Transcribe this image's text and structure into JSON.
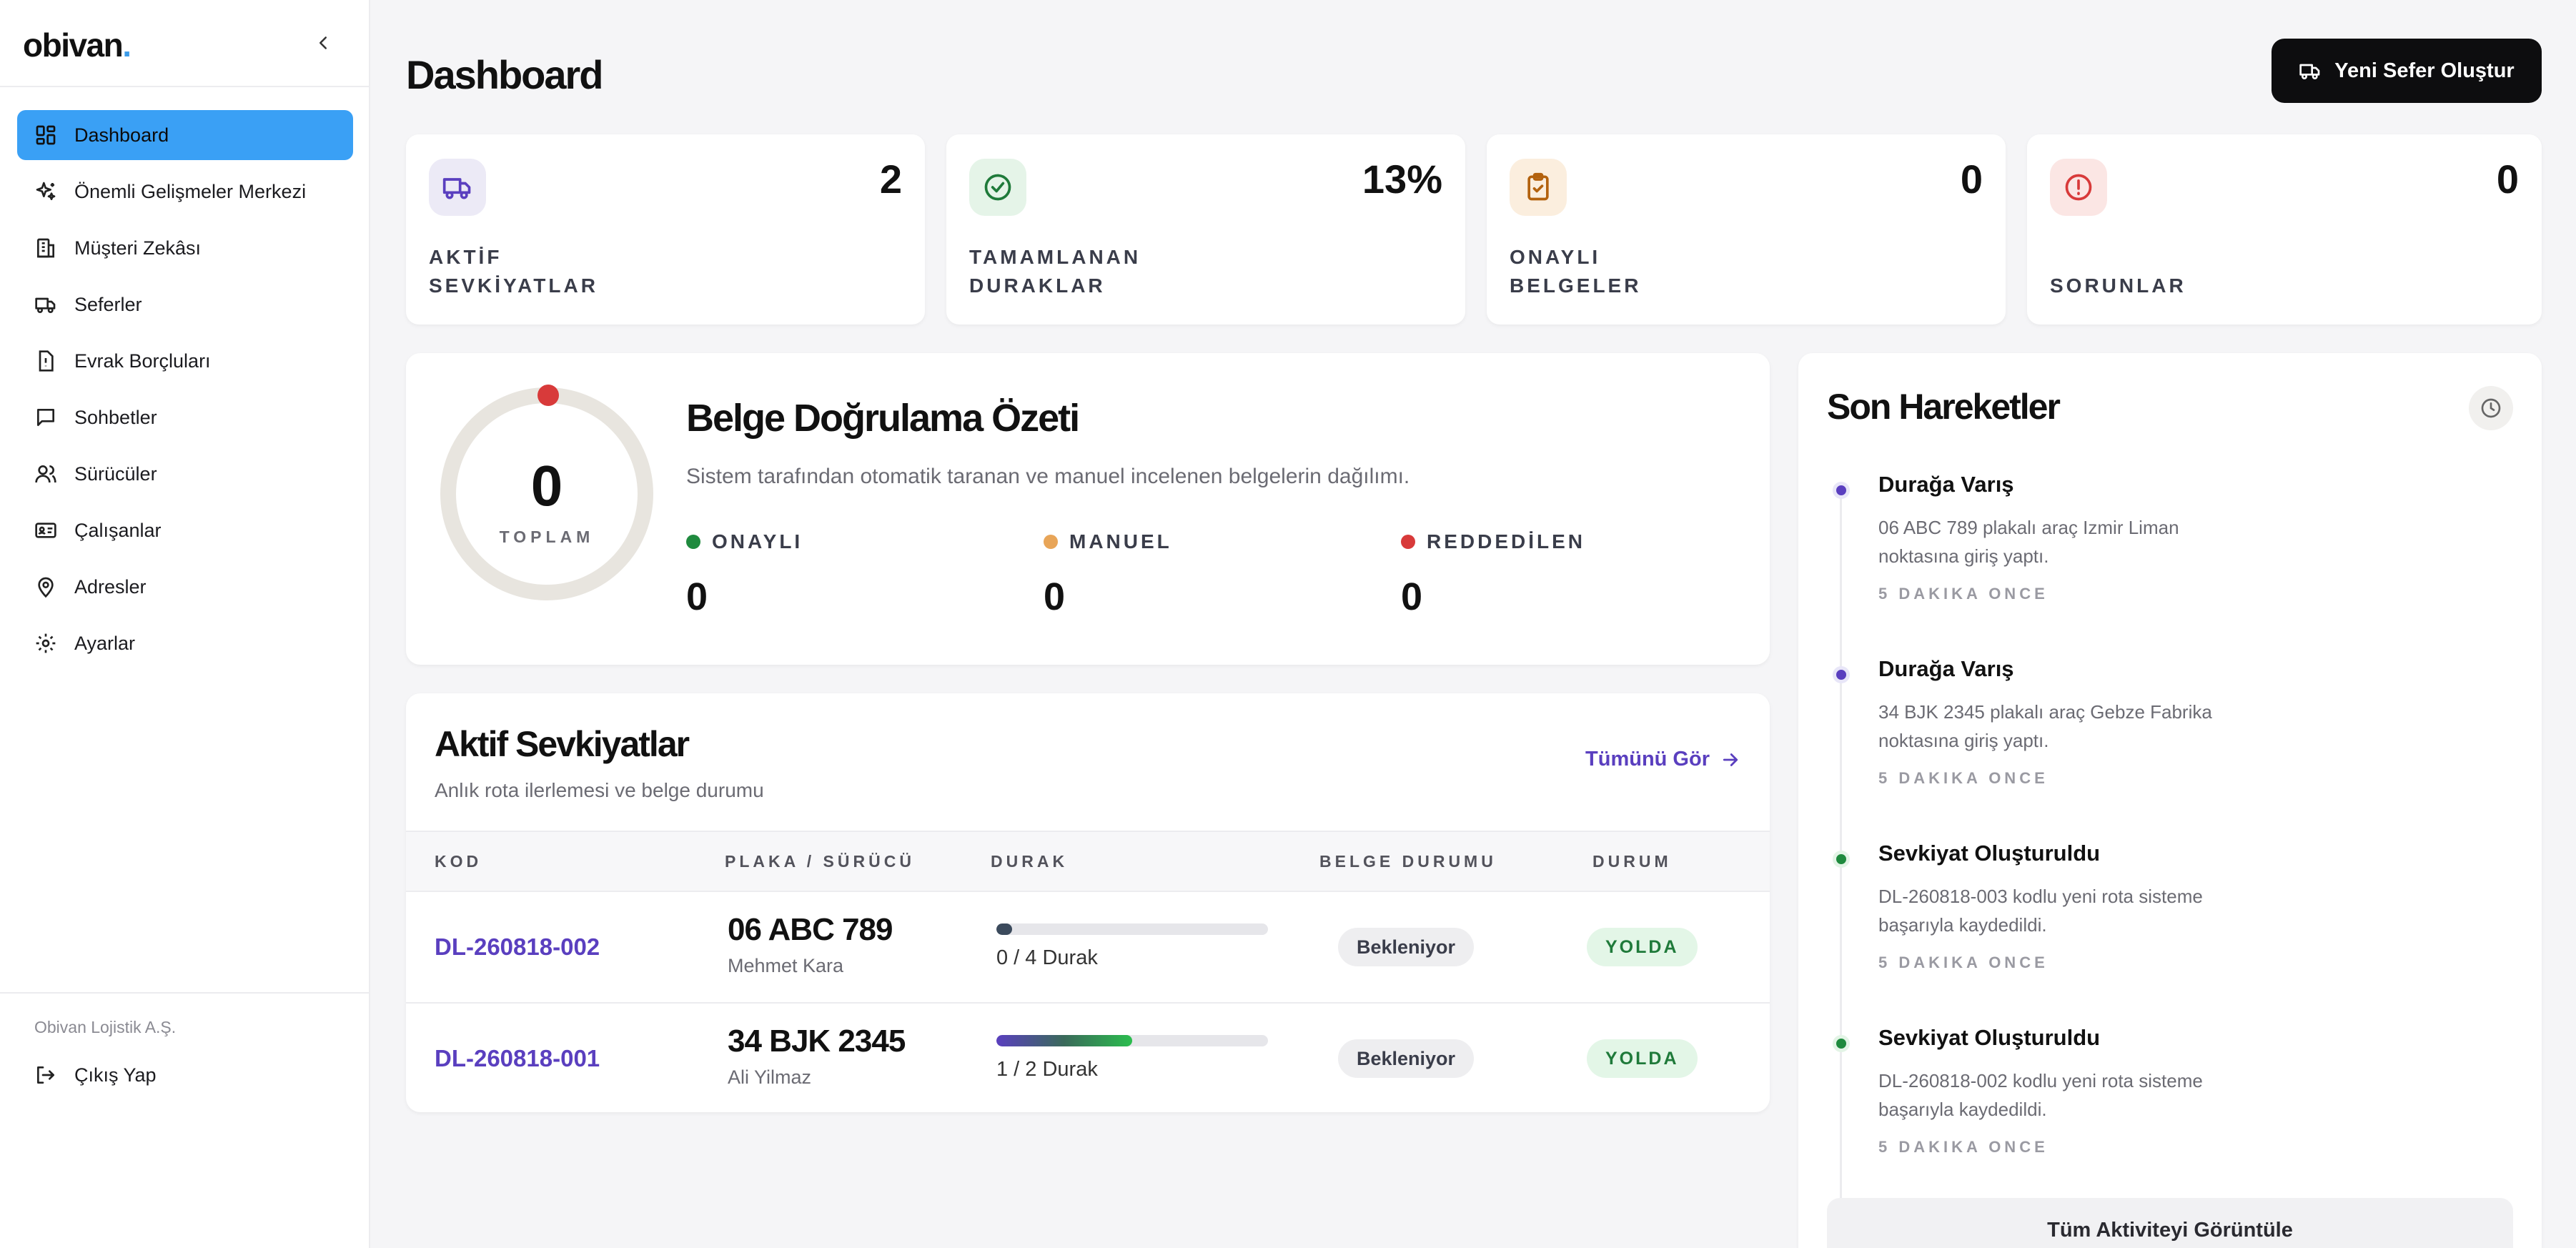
{
  "sidebar": {
    "logo": "obivan",
    "logo_dot": ".",
    "items": [
      {
        "label": "Dashboard",
        "icon": "grid-icon",
        "active": true
      },
      {
        "label": "Önemli Gelişmeler Merkezi",
        "icon": "sparkles-icon"
      },
      {
        "label": "Müşteri Zekâsı",
        "icon": "building-icon"
      },
      {
        "label": "Seferler",
        "icon": "truck-icon"
      },
      {
        "label": "Evrak Borçluları",
        "icon": "alert-file-icon"
      },
      {
        "label": "Sohbetler",
        "icon": "chat-icon"
      },
      {
        "label": "Sürücüler",
        "icon": "users-icon"
      },
      {
        "label": "Çalışanlar",
        "icon": "id-card-icon"
      },
      {
        "label": "Adresler",
        "icon": "map-pin-icon"
      },
      {
        "label": "Ayarlar",
        "icon": "gear-icon"
      }
    ],
    "company": "Obivan Lojistik A.Ş.",
    "logout": "Çıkış Yap"
  },
  "header": {
    "title": "Dashboard",
    "new_button": "Yeni Sefer Oluştur"
  },
  "stats": [
    {
      "value": "2",
      "label": "AKTİF\nSEVKİYATLAR",
      "icon": "truck-icon",
      "color": "#5a3fbf",
      "bg": "#eceaf6"
    },
    {
      "value": "13%",
      "label": "TAMAMLANAN\nDURAKLAR",
      "icon": "check-circle-icon",
      "color": "#1f7a3a",
      "bg": "#e5f4e8"
    },
    {
      "value": "0",
      "label": "ONAYLI\nBELGELER",
      "icon": "clipboard-check-icon",
      "color": "#b3620e",
      "bg": "#fbeede"
    },
    {
      "value": "0",
      "label": "SORUNLAR",
      "icon": "alert-circle-icon",
      "color": "#d83a3a",
      "bg": "#fbe6e4"
    }
  ],
  "verification": {
    "total": "0",
    "total_label": "TOPLAM",
    "title": "Belge Doğrulama Özeti",
    "subtitle": "Sistem tarafından otomatik taranan ve manuel incelenen belgelerin dağılımı.",
    "stats": [
      {
        "label": "ONAYLI",
        "value": "0",
        "color": "#1f8a3e"
      },
      {
        "label": "MANUEL",
        "value": "0",
        "color": "#e8a558"
      },
      {
        "label": "REDDEDİLEN",
        "value": "0",
        "color": "#d83a3a"
      }
    ]
  },
  "shipments": {
    "title": "Aktif Sevkiyatlar",
    "subtitle": "Anlık rota ilerlemesi ve belge durumu",
    "view_all": "Tümünü Gör",
    "columns": [
      "KOD",
      "PLAKA / SÜRÜCÜ",
      "DURAK",
      "BELGE DURUMU",
      "DURUM"
    ],
    "rows": [
      {
        "code": "DL-260818-002",
        "plate": "06 ABC 789",
        "driver": "Mehmet Kara",
        "progress": 0,
        "stops": "0 / 4 Durak",
        "doc": "Bekleniyor",
        "status": "YOLDA"
      },
      {
        "code": "DL-260818-001",
        "plate": "34 BJK 2345",
        "driver": "Ali Yilmaz",
        "progress": 0.5,
        "stops": "1 / 2 Durak",
        "doc": "Bekleniyor",
        "status": "YOLDA"
      }
    ]
  },
  "recent": {
    "title": "Son Hareketler",
    "events": [
      {
        "title": "Durağa Varış",
        "desc": "06 ABC 789 plakalı araç Izmir Liman noktasına giriş yaptı.",
        "time": "5 DAKIKA ONCE",
        "color": "#5a3fbf"
      },
      {
        "title": "Durağa Varış",
        "desc": "34 BJK 2345 plakalı araç Gebze Fabrika noktasına giriş yaptı.",
        "time": "5 DAKIKA ONCE",
        "color": "#5a3fbf"
      },
      {
        "title": "Sevkiyat Oluşturuldu",
        "desc": "DL-260818-003 kodlu yeni rota sisteme başarıyla kaydedildi.",
        "time": "5 DAKIKA ONCE",
        "color": "#1f8a3e"
      },
      {
        "title": "Sevkiyat Oluşturuldu",
        "desc": "DL-260818-002 kodlu yeni rota sisteme başarıyla kaydedildi.",
        "time": "5 DAKIKA ONCE",
        "color": "#1f8a3e"
      }
    ],
    "view_all": "Tüm Aktiviteyi Görüntüle"
  }
}
